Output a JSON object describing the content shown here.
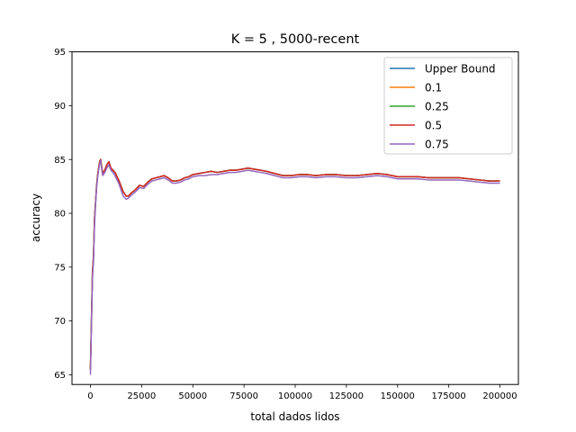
{
  "chart_data": {
    "type": "line",
    "title": "K = 5 , 5000-recent",
    "xlabel": "total dados lidos",
    "ylabel": "accuracy",
    "xlim": [
      -9000,
      209000
    ],
    "ylim": [
      64.1,
      95
    ],
    "xticks": [
      0,
      25000,
      50000,
      75000,
      100000,
      125000,
      150000,
      175000,
      200000
    ],
    "xtick_labels": [
      "0",
      "25000",
      "50000",
      "75000",
      "100000",
      "125000",
      "150000",
      "175000",
      "200000"
    ],
    "yticks": [
      65,
      70,
      75,
      80,
      85,
      90,
      95
    ],
    "ytick_labels": [
      "65",
      "70",
      "75",
      "80",
      "85",
      "90",
      "95"
    ],
    "grid": false,
    "legend_position": "upper right",
    "x": [
      0,
      500,
      1000,
      1500,
      2000,
      2500,
      3000,
      3500,
      4000,
      4500,
      5000,
      5500,
      6000,
      7000,
      8000,
      9000,
      10000,
      11000,
      12000,
      14000,
      16000,
      17500,
      18500,
      20000,
      22000,
      24000,
      26000,
      28000,
      30000,
      32000,
      34000,
      36000,
      38000,
      40000,
      42000,
      44000,
      46000,
      48000,
      50000,
      53000,
      56000,
      59000,
      62000,
      65000,
      68000,
      71000,
      74000,
      77000,
      80000,
      83000,
      86000,
      90000,
      94000,
      98000,
      102000,
      106000,
      110000,
      115000,
      120000,
      125000,
      130000,
      135000,
      140000,
      145000,
      150000,
      155000,
      160000,
      165000,
      170000,
      175000,
      180000,
      185000,
      190000,
      195000,
      200000
    ],
    "series": [
      {
        "name": "Upper Bound",
        "color": "#1f77b4",
        "offsets": {
          "early": 0.0,
          "late": 0.2
        },
        "values": [
          65.5,
          70.0,
          74.5,
          76.0,
          79.5,
          81.0,
          82.5,
          83.5,
          84.2,
          84.8,
          85.0,
          84.3,
          83.7,
          84.0,
          84.5,
          84.8,
          84.2,
          84.0,
          83.8,
          83.0,
          82.0,
          81.6,
          81.6,
          81.9,
          82.2,
          82.6,
          82.5,
          82.9,
          83.2,
          83.3,
          83.4,
          83.5,
          83.3,
          83.0,
          83.0,
          83.1,
          83.3,
          83.4,
          83.6,
          83.7,
          83.8,
          83.9,
          83.8,
          83.9,
          84.0,
          84.0,
          84.1,
          84.2,
          84.1,
          84.0,
          83.9,
          83.7,
          83.5,
          83.5,
          83.6,
          83.6,
          83.5,
          83.6,
          83.6,
          83.5,
          83.5,
          83.6,
          83.7,
          83.6,
          83.4,
          83.4,
          83.4,
          83.3,
          83.3,
          83.3,
          83.3,
          83.2,
          83.1,
          83.0,
          83.0
        ]
      },
      {
        "name": "0.1",
        "color": "#ff7f0e",
        "offsets": {
          "early": 0.15,
          "late": 0.1
        },
        "values": [
          65.5,
          70.0,
          74.5,
          76.0,
          79.5,
          81.0,
          82.5,
          83.5,
          84.2,
          84.8,
          85.0,
          84.3,
          83.7,
          84.0,
          84.5,
          84.8,
          84.2,
          84.0,
          83.8,
          83.0,
          82.0,
          81.6,
          81.6,
          81.9,
          82.2,
          82.6,
          82.5,
          82.9,
          83.2,
          83.3,
          83.4,
          83.5,
          83.3,
          83.0,
          83.0,
          83.1,
          83.3,
          83.4,
          83.6,
          83.7,
          83.8,
          83.9,
          83.8,
          83.9,
          84.0,
          84.0,
          84.1,
          84.2,
          84.1,
          84.0,
          83.9,
          83.7,
          83.5,
          83.5,
          83.6,
          83.6,
          83.5,
          83.6,
          83.6,
          83.5,
          83.5,
          83.6,
          83.7,
          83.6,
          83.4,
          83.4,
          83.4,
          83.3,
          83.3,
          83.3,
          83.3,
          83.2,
          83.1,
          83.0,
          83.0
        ]
      },
      {
        "name": "0.25",
        "color": "#2ca02c",
        "offsets": {
          "early": 0.05,
          "late": 0.05
        },
        "values": [
          65.5,
          70.0,
          74.5,
          76.0,
          79.5,
          81.0,
          82.5,
          83.5,
          84.2,
          84.8,
          85.0,
          84.3,
          83.7,
          84.0,
          84.5,
          84.8,
          84.2,
          84.0,
          83.8,
          83.0,
          82.0,
          81.6,
          81.6,
          81.9,
          82.2,
          82.6,
          82.5,
          82.9,
          83.2,
          83.3,
          83.4,
          83.5,
          83.3,
          83.0,
          83.0,
          83.1,
          83.3,
          83.4,
          83.6,
          83.7,
          83.8,
          83.9,
          83.8,
          83.9,
          84.0,
          84.0,
          84.1,
          84.2,
          84.1,
          84.0,
          83.9,
          83.7,
          83.5,
          83.5,
          83.6,
          83.6,
          83.5,
          83.6,
          83.6,
          83.5,
          83.5,
          83.6,
          83.7,
          83.6,
          83.4,
          83.4,
          83.4,
          83.3,
          83.3,
          83.3,
          83.3,
          83.2,
          83.1,
          83.0,
          83.0
        ]
      },
      {
        "name": "0.5",
        "color": "#d62728",
        "offsets": {
          "early": -0.05,
          "late": -0.15
        },
        "values": [
          65.5,
          70.0,
          74.5,
          76.0,
          79.5,
          81.0,
          82.5,
          83.5,
          84.2,
          84.8,
          85.0,
          84.3,
          83.7,
          84.0,
          84.5,
          84.8,
          84.2,
          84.0,
          83.8,
          83.0,
          82.0,
          81.6,
          81.6,
          81.9,
          82.2,
          82.6,
          82.5,
          82.9,
          83.2,
          83.3,
          83.4,
          83.5,
          83.3,
          83.0,
          83.0,
          83.1,
          83.3,
          83.4,
          83.6,
          83.7,
          83.8,
          83.9,
          83.8,
          83.9,
          84.0,
          84.0,
          84.1,
          84.2,
          84.1,
          84.0,
          83.9,
          83.7,
          83.5,
          83.5,
          83.6,
          83.6,
          83.5,
          83.6,
          83.6,
          83.5,
          83.5,
          83.6,
          83.7,
          83.6,
          83.4,
          83.4,
          83.4,
          83.3,
          83.3,
          83.3,
          83.3,
          83.2,
          83.1,
          83.0,
          83.0
        ]
      },
      {
        "name": "0.75",
        "color": "#9467bd",
        "offsets": {
          "early": -0.2,
          "late": -0.25
        },
        "values": [
          65.0,
          69.5,
          74.0,
          75.5,
          79.0,
          80.8,
          82.3,
          83.3,
          84.0,
          84.6,
          84.9,
          84.1,
          83.5,
          83.8,
          84.2,
          84.5,
          84.0,
          83.8,
          83.5,
          82.7,
          81.6,
          81.3,
          81.4,
          81.7,
          82.0,
          82.4,
          82.3,
          82.7,
          83.0,
          83.1,
          83.2,
          83.3,
          83.1,
          82.8,
          82.8,
          82.9,
          83.1,
          83.2,
          83.4,
          83.5,
          83.5,
          83.6,
          83.6,
          83.7,
          83.8,
          83.8,
          83.9,
          84.0,
          83.9,
          83.8,
          83.7,
          83.5,
          83.3,
          83.3,
          83.4,
          83.4,
          83.3,
          83.4,
          83.4,
          83.3,
          83.3,
          83.4,
          83.5,
          83.4,
          83.2,
          83.2,
          83.2,
          83.1,
          83.1,
          83.1,
          83.1,
          83.0,
          82.9,
          82.8,
          82.8
        ]
      }
    ]
  }
}
